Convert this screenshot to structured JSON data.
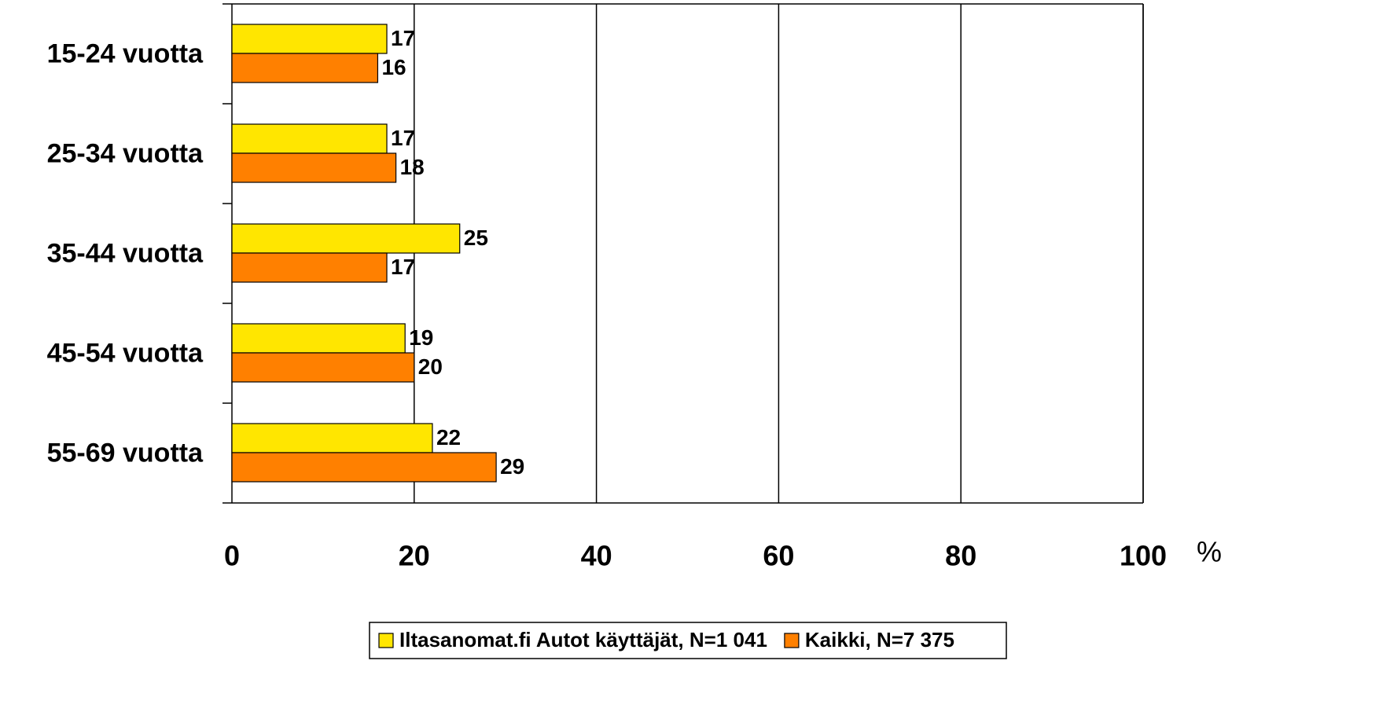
{
  "chart_data": {
    "type": "hbar",
    "x_label": "%",
    "categories": [
      "15-24 vuotta",
      "25-34 vuotta",
      "35-44 vuotta",
      "45-54 vuotta",
      "55-69 vuotta"
    ],
    "series": [
      {
        "name": "Iltasanomat.fi Autot käyttäjät, N=1 041",
        "color": "#ffe600",
        "values": [
          17,
          17,
          25,
          19,
          22
        ]
      },
      {
        "name": "Kaikki, N=7 375",
        "color": "#ff8000",
        "values": [
          16,
          18,
          17,
          20,
          29
        ]
      }
    ],
    "xlim": [
      0,
      100
    ],
    "xticks": [
      0,
      20,
      40,
      60,
      80,
      100
    ],
    "grid": true,
    "legend": "bottom"
  }
}
